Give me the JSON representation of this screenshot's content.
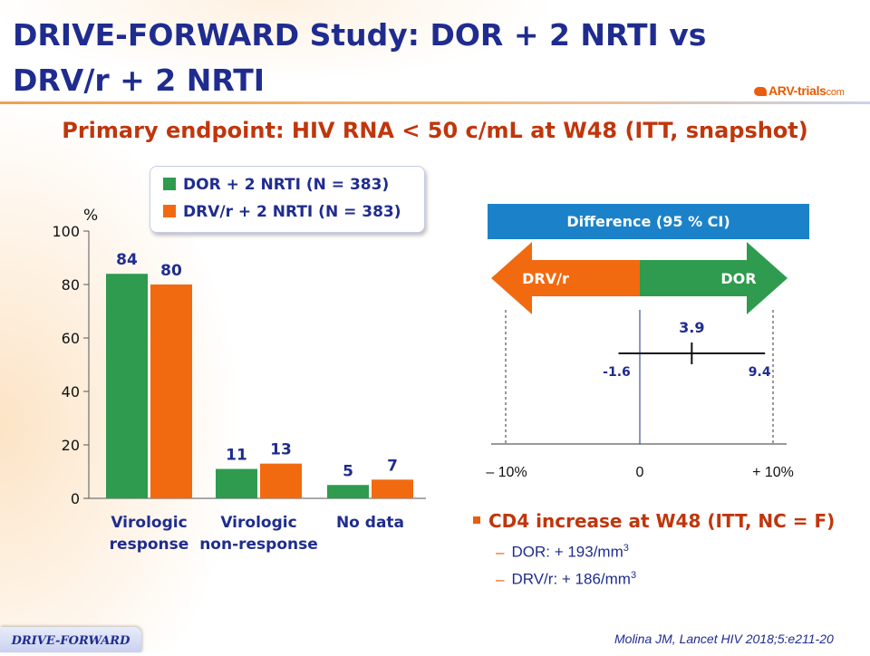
{
  "title": "DRIVE-FORWARD Study: DOR + 2 NRTI vs DRV/r + 2 NRTI",
  "logo": {
    "prefix": "ARV-trials",
    "suffix": "com"
  },
  "subtitle": "Primary endpoint: HIV RNA < 50 c/mL at W48 (ITT, snapshot)",
  "colors": {
    "dor": "#2e9b4e",
    "drv": "#f26a10",
    "title": "#1f2c8f",
    "accent": "#c0360c",
    "ci_header": "#1b82c9"
  },
  "chart_data": [
    {
      "type": "bar",
      "ylabel": "%",
      "ylim": [
        0,
        100
      ],
      "yticks": [
        0,
        20,
        40,
        60,
        80,
        100
      ],
      "categories": [
        [
          "Virologic",
          "response"
        ],
        [
          "Virologic",
          "non-response"
        ],
        [
          "No data"
        ]
      ],
      "series": [
        {
          "name": "DOR + 2 NRTI (N = 383)",
          "values": [
            84,
            11,
            5
          ]
        },
        {
          "name": "DRV/r + 2 NRTI (N = 383)",
          "values": [
            80,
            13,
            7
          ]
        }
      ],
      "legend": "top"
    },
    {
      "type": "forest",
      "header": "Difference (95 % CI)",
      "arrow_left": "DRV/r",
      "arrow_right": "DOR",
      "xlim": [
        -10,
        10
      ],
      "x_tick_labels": [
        "– 10%",
        "0",
        "+ 10%"
      ],
      "x_tick_values": [
        -10,
        0,
        10
      ],
      "point": 3.9,
      "ci": [
        -1.6,
        9.4
      ],
      "point_label": "3.9",
      "ci_labels": [
        "-1.6",
        "9.4"
      ]
    }
  ],
  "cd4": {
    "heading": "CD4 increase at W48 (ITT, NC = F)",
    "items": [
      {
        "text": "DOR: + 193/mm",
        "sup": "3"
      },
      {
        "text": "DRV/r: + 186/mm",
        "sup": "3"
      }
    ]
  },
  "footer_tab": "DRIVE-FORWARD",
  "citation": "Molina JM, Lancet HIV 2018;5:e211-20"
}
